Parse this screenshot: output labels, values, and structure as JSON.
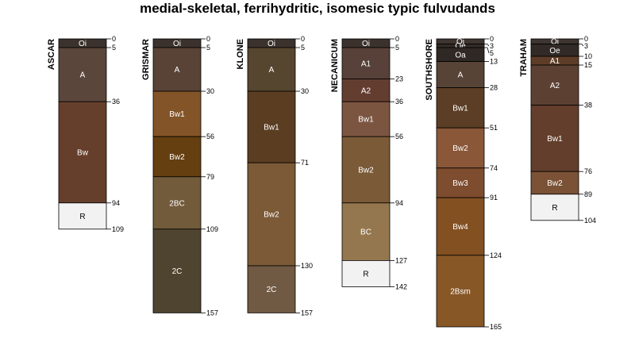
{
  "title": "medial-skeletal, ferrihydritic, isomesic typic fulvudands",
  "chart_data": {
    "type": "soil-profile-sketch",
    "depth_units": "cm",
    "profiles": [
      {
        "name": "ASCAR",
        "horizons": [
          {
            "name": "Oi",
            "top": 0,
            "bottom": 5,
            "color": "#3b322d"
          },
          {
            "name": "A",
            "top": 5,
            "bottom": 36,
            "color": "#5a463b"
          },
          {
            "name": "Bw",
            "top": 36,
            "bottom": 94,
            "color": "#663f2c"
          },
          {
            "name": "R",
            "top": 94,
            "bottom": 109,
            "color": "#f2f2f2"
          }
        ]
      },
      {
        "name": "GRISMAR",
        "horizons": [
          {
            "name": "Oi",
            "top": 0,
            "bottom": 5,
            "color": "#3b322d"
          },
          {
            "name": "A",
            "top": 5,
            "bottom": 30,
            "color": "#584336"
          },
          {
            "name": "Bw1",
            "top": 30,
            "bottom": 56,
            "color": "#835427"
          },
          {
            "name": "Bw2",
            "top": 56,
            "bottom": 79,
            "color": "#653f10"
          },
          {
            "name": "2BC",
            "top": 79,
            "bottom": 109,
            "color": "#725b3b"
          },
          {
            "name": "2C",
            "top": 109,
            "bottom": 157,
            "color": "#4f442f"
          }
        ]
      },
      {
        "name": "KLONE",
        "horizons": [
          {
            "name": "Oi",
            "top": 0,
            "bottom": 5,
            "color": "#3b322d"
          },
          {
            "name": "A",
            "top": 5,
            "bottom": 30,
            "color": "#57462f"
          },
          {
            "name": "Bw1",
            "top": 30,
            "bottom": 71,
            "color": "#5b3e22"
          },
          {
            "name": "Bw2",
            "top": 71,
            "bottom": 130,
            "color": "#7c5a37"
          },
          {
            "name": "2C",
            "top": 130,
            "bottom": 157,
            "color": "#705a44"
          }
        ]
      },
      {
        "name": "NECANICUM",
        "horizons": [
          {
            "name": "Oi",
            "top": 0,
            "bottom": 5,
            "color": "#3b322d"
          },
          {
            "name": "A1",
            "top": 5,
            "bottom": 23,
            "color": "#584139"
          },
          {
            "name": "A2",
            "top": 23,
            "bottom": 36,
            "color": "#643d31"
          },
          {
            "name": "Bw1",
            "top": 36,
            "bottom": 56,
            "color": "#7c5541"
          },
          {
            "name": "Bw2",
            "top": 56,
            "bottom": 94,
            "color": "#7b5a37"
          },
          {
            "name": "BC",
            "top": 94,
            "bottom": 127,
            "color": "#95774f"
          },
          {
            "name": "R",
            "top": 127,
            "bottom": 142,
            "color": "#f2f2f2"
          }
        ]
      },
      {
        "name": "SOUTHSHORE",
        "horizons": [
          {
            "name": "Oi",
            "top": 0,
            "bottom": 3,
            "color": "#3e3530"
          },
          {
            "name": "Oe",
            "top": 3,
            "bottom": 5,
            "color": "#342b27"
          },
          {
            "name": "Oa",
            "top": 5,
            "bottom": 13,
            "color": "#2f2824"
          },
          {
            "name": "A",
            "top": 13,
            "bottom": 28,
            "color": "#574436"
          },
          {
            "name": "Bw1",
            "top": 28,
            "bottom": 51,
            "color": "#5b3e25"
          },
          {
            "name": "Bw2",
            "top": 51,
            "bottom": 74,
            "color": "#8a5738"
          },
          {
            "name": "Bw3",
            "top": 74,
            "bottom": 91,
            "color": "#7e4c2e"
          },
          {
            "name": "Bw4",
            "top": 91,
            "bottom": 124,
            "color": "#835022"
          },
          {
            "name": "2Bsm",
            "top": 124,
            "bottom": 165,
            "color": "#885726"
          }
        ]
      },
      {
        "name": "TRAHAM",
        "horizons": [
          {
            "name": "Oi",
            "top": 0,
            "bottom": 3,
            "color": "#3e3530"
          },
          {
            "name": "Oe",
            "top": 3,
            "bottom": 10,
            "color": "#312a26"
          },
          {
            "name": "A1",
            "top": 10,
            "bottom": 15,
            "color": "#5e3d28"
          },
          {
            "name": "A2",
            "top": 15,
            "bottom": 38,
            "color": "#5c4133"
          },
          {
            "name": "Bw1",
            "top": 38,
            "bottom": 76,
            "color": "#633e2c"
          },
          {
            "name": "Bw2",
            "top": 76,
            "bottom": 89,
            "color": "#7b5236"
          },
          {
            "name": "R",
            "top": 89,
            "bottom": 104,
            "color": "#f2f2f2"
          }
        ]
      }
    ]
  }
}
